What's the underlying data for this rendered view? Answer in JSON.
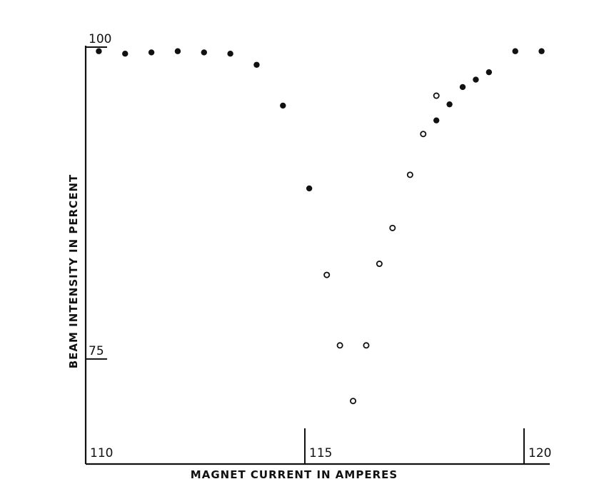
{
  "chart_data": {
    "type": "scatter",
    "title": "",
    "xlabel": "MAGNET CURRENT IN AMPERES",
    "ylabel": "BEAM INTENSITY IN PERCENT",
    "xlim": [
      110,
      120
    ],
    "ylim": [
      66.5,
      100
    ],
    "x_ticks": [
      {
        "value": 110,
        "label": "110"
      },
      {
        "value": 115,
        "label": "115"
      },
      {
        "value": 120,
        "label": "120"
      }
    ],
    "y_ticks": [
      {
        "value": 100,
        "label": "100"
      },
      {
        "value": 75,
        "label": "75"
      }
    ],
    "grid": false,
    "series": [
      {
        "marker": "filled-circle",
        "points": [
          [
            110.3,
            99.9
          ],
          [
            110.9,
            99.7
          ],
          [
            111.5,
            99.8
          ],
          [
            112.1,
            99.9
          ],
          [
            112.7,
            99.8
          ],
          [
            113.3,
            99.7
          ],
          [
            113.9,
            98.8
          ],
          [
            114.5,
            95.5
          ],
          [
            115.1,
            88.8
          ],
          [
            118.0,
            94.3
          ],
          [
            118.3,
            95.6
          ],
          [
            118.6,
            97.0
          ],
          [
            118.9,
            97.6
          ],
          [
            119.2,
            98.2
          ],
          [
            119.8,
            99.9
          ],
          [
            120.4,
            99.9
          ]
        ]
      },
      {
        "marker": "open-circle",
        "points": [
          [
            115.5,
            81.8
          ],
          [
            115.8,
            76.1
          ],
          [
            116.1,
            71.6
          ],
          [
            116.4,
            76.1
          ],
          [
            116.7,
            82.7
          ],
          [
            117.0,
            85.6
          ],
          [
            117.4,
            89.9
          ],
          [
            117.7,
            93.2
          ],
          [
            118.0,
            96.3
          ]
        ]
      }
    ]
  }
}
